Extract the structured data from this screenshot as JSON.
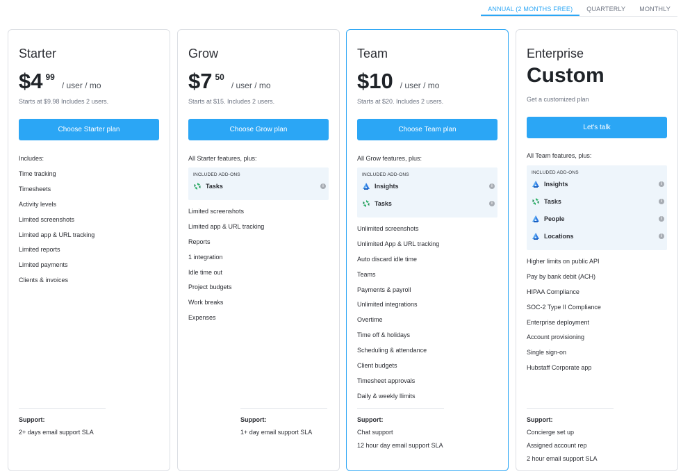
{
  "billing": {
    "tabs": [
      {
        "label": "ANNUAL (2 MONTHS FREE)",
        "active": true
      },
      {
        "label": "QUARTERLY",
        "active": false
      },
      {
        "label": "MONTHLY",
        "active": false
      }
    ]
  },
  "colors": {
    "accent": "#2ba6f5",
    "addon_bg": "#eef5fb",
    "border": "#dcdfe4"
  },
  "plans": [
    {
      "name": "Starter",
      "price": {
        "amount": "$4",
        "cents": "99",
        "unit": "/ user / mo"
      },
      "starts": "Starts at $9.98 Includes 2 users.",
      "cta": "Choose Starter plan",
      "features_head": "Includes:",
      "features": [
        "Time tracking",
        "Timesheets",
        "Activity levels",
        "Limited screenshots",
        "Limited app & URL tracking",
        "Limited reports",
        "Limited payments",
        "Clients & invoices"
      ],
      "support": {
        "label": "Support:",
        "items": [
          "2+ days email support SLA"
        ]
      }
    },
    {
      "name": "Grow",
      "price": {
        "amount": "$7",
        "cents": "50",
        "unit": "/ user / mo"
      },
      "starts": "Starts at $15. Includes 2 users.",
      "cta": "Choose Grow plan",
      "features_head": "All Starter features, plus:",
      "addons": {
        "title": "INCLUDED ADD-ONS",
        "items": [
          {
            "name": "Tasks",
            "icon": "tasks-icon"
          }
        ]
      },
      "features": [
        "Limited screenshots",
        "Limited app & URL tracking",
        "Reports",
        "1 integration",
        "Idle time out",
        "Project budgets",
        "Work breaks",
        "Expenses"
      ],
      "support": {
        "label": "Support:",
        "items": [
          "1+ day email support SLA"
        ]
      }
    },
    {
      "name": "Team",
      "price": {
        "amount": "$10",
        "cents": "",
        "unit": "/ user / mo"
      },
      "starts": "Starts at $20. Includes 2 users.",
      "cta": "Choose Team plan",
      "features_head": "All Grow features, plus:",
      "addons": {
        "title": "INCLUDED ADD-ONS",
        "items": [
          {
            "name": "Insights",
            "icon": "insights-icon"
          },
          {
            "name": "Tasks",
            "icon": "tasks-icon"
          }
        ]
      },
      "features": [
        "Unlimited screenshots",
        "Unlimited App & URL tracking",
        "Auto discard idle time",
        "Teams",
        "Payments & payroll",
        "Unlimited integrations",
        "Overtime",
        "Time off & holidays",
        "Scheduling & attendance",
        "Client budgets",
        "Timesheet approvals",
        "Daily & weekly llimits"
      ],
      "support": {
        "label": "Support:",
        "items": [
          "Chat support",
          "12 hour day email support SLA"
        ]
      }
    },
    {
      "name": "Enterprise",
      "custom": "Custom",
      "starts": "Get a customized plan",
      "cta": "Let's talk",
      "features_head": "All Team features, plus:",
      "addons": {
        "title": "INCLUDED ADD-ONS",
        "items": [
          {
            "name": "Insights",
            "icon": "insights-icon"
          },
          {
            "name": "Tasks",
            "icon": "tasks-icon"
          },
          {
            "name": "People",
            "icon": "people-icon"
          },
          {
            "name": "Locations",
            "icon": "locations-icon"
          }
        ]
      },
      "features": [
        "Higher limits on public API",
        "Pay by bank debit (ACH)",
        "HIPAA Compliance",
        "SOC-2 Type II Compliance",
        "Enterprise deployment",
        "Account provisioning",
        "Single sign-on",
        "Hubstaff Corporate app"
      ],
      "support": {
        "label": "Support:",
        "items": [
          "Concierge set up",
          "Assigned account rep",
          "2 hour email support SLA"
        ]
      }
    }
  ]
}
